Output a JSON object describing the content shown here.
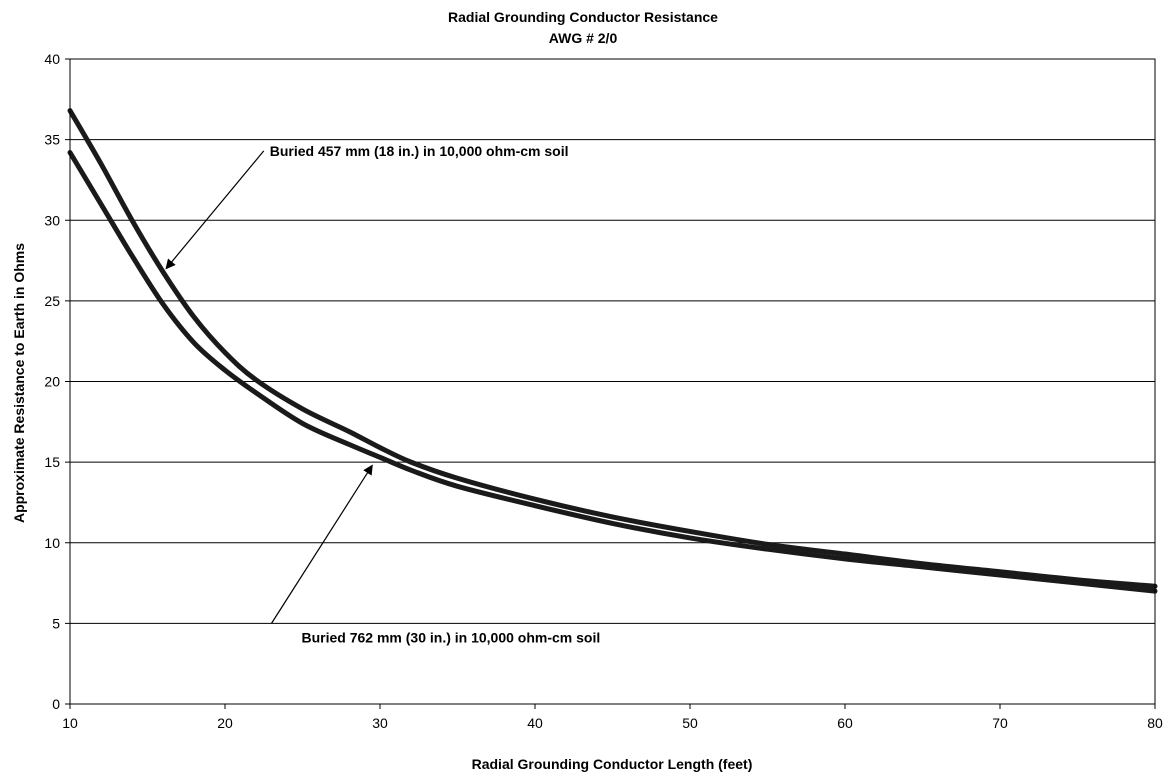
{
  "chart_data": {
    "type": "line",
    "title": "Radial Grounding Conductor Resistance",
    "subtitle": "AWG # 2/0",
    "xlabel": "Radial Grounding Conductor Length (feet)",
    "ylabel": "Approximate Resistance to Earth in Ohms",
    "xlim": [
      10,
      80
    ],
    "ylim": [
      0,
      40
    ],
    "x_ticks": [
      10,
      20,
      30,
      40,
      50,
      60,
      70,
      80
    ],
    "y_ticks": [
      0,
      5,
      10,
      15,
      20,
      25,
      30,
      35,
      40
    ],
    "grid": "horizontal",
    "legend": "none",
    "series": [
      {
        "name": "Buried 457 mm (18 in.) in 10,000 ohm-cm soil",
        "color": "#1a1a1a",
        "points": [
          [
            10,
            36.8
          ],
          [
            12,
            33.5
          ],
          [
            14,
            30.0
          ],
          [
            16,
            26.8
          ],
          [
            18,
            24.0
          ],
          [
            20,
            21.8
          ],
          [
            22,
            20.1
          ],
          [
            25,
            18.3
          ],
          [
            28,
            16.9
          ],
          [
            30,
            15.9
          ],
          [
            32,
            15.0
          ],
          [
            35,
            14.0
          ],
          [
            40,
            12.7
          ],
          [
            45,
            11.6
          ],
          [
            50,
            10.7
          ],
          [
            55,
            9.9
          ],
          [
            60,
            9.3
          ],
          [
            65,
            8.7
          ],
          [
            70,
            8.2
          ],
          [
            75,
            7.7
          ],
          [
            80,
            7.3
          ]
        ]
      },
      {
        "name": "Buried 762 mm (30 in.) in 10,000 ohm-cm soil",
        "color": "#1a1a1a",
        "points": [
          [
            10,
            34.2
          ],
          [
            12,
            31.0
          ],
          [
            14,
            27.8
          ],
          [
            16,
            24.8
          ],
          [
            18,
            22.4
          ],
          [
            20,
            20.7
          ],
          [
            22,
            19.3
          ],
          [
            25,
            17.4
          ],
          [
            28,
            16.1
          ],
          [
            30,
            15.3
          ],
          [
            32,
            14.5
          ],
          [
            35,
            13.5
          ],
          [
            40,
            12.3
          ],
          [
            45,
            11.2
          ],
          [
            50,
            10.3
          ],
          [
            55,
            9.6
          ],
          [
            60,
            9.0
          ],
          [
            65,
            8.5
          ],
          [
            70,
            8.0
          ],
          [
            75,
            7.5
          ],
          [
            80,
            7.0
          ]
        ]
      }
    ],
    "annotations": [
      {
        "text": "Buried 457 mm (18 in.) in 10,000 ohm-cm soil",
        "arrow_to": [
          16.2,
          27.0
        ],
        "arrow_from": [
          22.5,
          34.3
        ]
      },
      {
        "text": "Buried 762 mm (30 in.) in 10,000 ohm-cm soil",
        "arrow_to": [
          29.5,
          14.8
        ],
        "arrow_from": [
          23.0,
          5.0
        ]
      }
    ]
  }
}
